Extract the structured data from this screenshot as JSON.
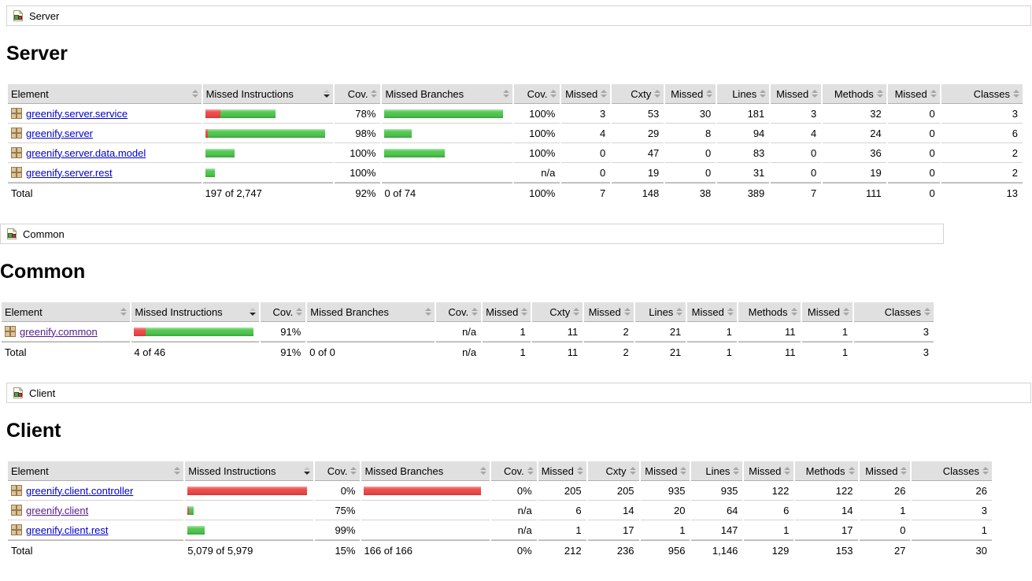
{
  "columns": [
    "Element",
    "Missed Instructions",
    "Cov.",
    "Missed Branches",
    "Cov.",
    "Missed",
    "Cxty",
    "Missed",
    "Lines",
    "Missed",
    "Methods",
    "Missed",
    "Classes"
  ],
  "sorted_column_index": 1,
  "sort_state": "descending",
  "icons": {
    "breadcrumb": "report-icon",
    "package": "package-icon",
    "sort": "sort-icon"
  },
  "colors": {
    "header_bg": "#e0e0e0",
    "header_border": "#b0b0b0",
    "row_border": "#d6d3ce",
    "bar_green": "#4cc14c",
    "bar_red": "#ea4646",
    "link": "#0000cc",
    "link_visited": "#551a8b"
  },
  "sections": [
    {
      "id": "server",
      "breadcrumb": "Server",
      "heading": "Server",
      "rows": [
        {
          "name": "greenify.server.service",
          "visited": false,
          "ins_bar": [
            19,
            70
          ],
          "ins_cov": "78%",
          "br_bar": [
            0,
            151
          ],
          "br_cov": "100%",
          "cells": [
            "3",
            "53",
            "30",
            "181",
            "3",
            "32",
            "0",
            "3"
          ]
        },
        {
          "name": "greenify.server",
          "visited": false,
          "ins_bar": [
            3,
            149
          ],
          "ins_cov": "98%",
          "br_bar": [
            0,
            35
          ],
          "br_cov": "100%",
          "cells": [
            "4",
            "29",
            "8",
            "94",
            "4",
            "24",
            "0",
            "6"
          ]
        },
        {
          "name": "greenify.server.data.model",
          "visited": false,
          "ins_bar": [
            0,
            37
          ],
          "ins_cov": "100%",
          "br_bar": [
            0,
            77
          ],
          "br_cov": "100%",
          "cells": [
            "0",
            "47",
            "0",
            "83",
            "0",
            "36",
            "0",
            "2"
          ]
        },
        {
          "name": "greenify.server.rest",
          "visited": false,
          "ins_bar": [
            0,
            12
          ],
          "ins_cov": "100%",
          "br_bar": null,
          "br_cov": "n/a",
          "cells": [
            "0",
            "19",
            "0",
            "31",
            "0",
            "19",
            "0",
            "2"
          ]
        }
      ],
      "total": {
        "label": "Total",
        "ins_text": "197 of 2,747",
        "ins_cov": "92%",
        "br_text": "0 of 74",
        "br_cov": "100%",
        "cells": [
          "7",
          "148",
          "38",
          "389",
          "7",
          "111",
          "0",
          "13"
        ]
      }
    },
    {
      "id": "common",
      "breadcrumb": "Common",
      "heading": "Common",
      "rows": [
        {
          "name": "greenify.common",
          "visited": true,
          "ins_bar": [
            15,
            137
          ],
          "ins_cov": "91%",
          "br_bar": null,
          "br_cov": "n/a",
          "cells": [
            "1",
            "11",
            "2",
            "21",
            "1",
            "11",
            "1",
            "3"
          ]
        }
      ],
      "total": {
        "label": "Total",
        "ins_text": "4 of 46",
        "ins_cov": "91%",
        "br_text": "0 of 0",
        "br_cov": "n/a",
        "cells": [
          "1",
          "11",
          "2",
          "21",
          "1",
          "11",
          "1",
          "3"
        ]
      }
    },
    {
      "id": "client",
      "breadcrumb": "Client",
      "heading": "Client",
      "rows": [
        {
          "name": "greenify.client.controller",
          "visited": false,
          "ins_bar": [
            152,
            0
          ],
          "ins_cov": "0%",
          "br_bar": [
            149,
            0
          ],
          "br_cov": "0%",
          "cells": [
            "205",
            "205",
            "935",
            "935",
            "122",
            "122",
            "26",
            "26"
          ]
        },
        {
          "name": "greenify.client",
          "visited": true,
          "ins_bar": [
            2,
            6
          ],
          "ins_cov": "75%",
          "br_bar": null,
          "br_cov": "n/a",
          "cells": [
            "6",
            "14",
            "20",
            "64",
            "6",
            "14",
            "1",
            "3"
          ]
        },
        {
          "name": "greenify.client.rest",
          "visited": false,
          "ins_bar": [
            0,
            22
          ],
          "ins_cov": "99%",
          "br_bar": null,
          "br_cov": "n/a",
          "cells": [
            "1",
            "17",
            "1",
            "147",
            "1",
            "17",
            "0",
            "1"
          ]
        }
      ],
      "total": {
        "label": "Total",
        "ins_text": "5,079 of 5,979",
        "ins_cov": "15%",
        "br_text": "166 of 166",
        "br_cov": "0%",
        "cells": [
          "212",
          "236",
          "956",
          "1,146",
          "129",
          "153",
          "27",
          "30"
        ]
      }
    }
  ]
}
